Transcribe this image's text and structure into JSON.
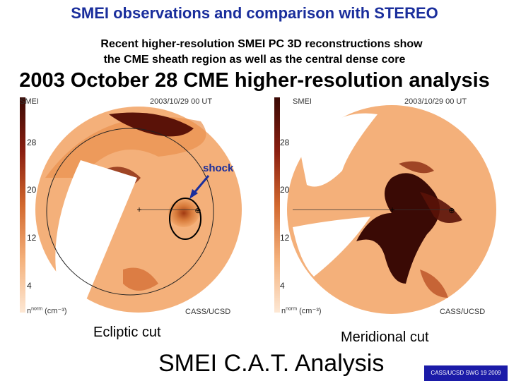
{
  "title": "SMEI observations and comparison with STEREO",
  "subtitle_line1": "Recent higher-resolution SMEI PC 3D reconstructions show",
  "subtitle_line2": "the CME sheath region as well as the central dense core",
  "analysis_title": "2003 October 28 CME higher-resolution analysis",
  "panels": [
    {
      "label": "SMEI",
      "timestamp": "2003/10/29 00 UT",
      "colorbar_ticks": [
        "28",
        "20",
        "12",
        "4"
      ],
      "units": "n",
      "units_sup": "norm",
      "units_rest": "(cm⁻³)",
      "credit": "CASS/UCSD",
      "caption": "Ecliptic cut"
    },
    {
      "label": "SMEI",
      "timestamp": "2003/10/29 00 UT",
      "colorbar_ticks": [
        "28",
        "20",
        "12",
        "4"
      ],
      "units": "n",
      "units_sup": "norm",
      "units_rest": "(cm⁻³)",
      "credit": "CASS/UCSD",
      "caption": "Meridional cut"
    }
  ],
  "annotation": "shock",
  "footer_title": "SMEI C.A.T. Analysis",
  "footer_badge": "CASS/UCSD SWG 19 2009",
  "colors": {
    "title_blue": "#1a2e9c",
    "density_low": "#f4b07a",
    "density_high": "#3a0a05",
    "badge_bg": "#1b1ba8"
  }
}
